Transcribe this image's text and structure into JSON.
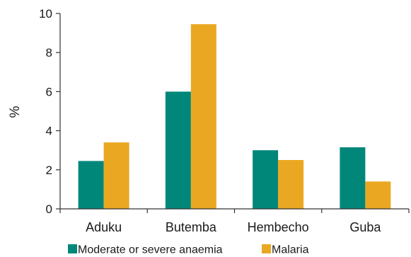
{
  "chart_data": {
    "type": "bar",
    "categories": [
      "Aduku",
      "Butemba",
      "Hembecho",
      "Guba"
    ],
    "series": [
      {
        "name": "Moderate or severe anaemia",
        "color": "#00877A",
        "values": [
          2.45,
          6.0,
          3.0,
          3.15
        ]
      },
      {
        "name": "Malaria",
        "color": "#EAA822",
        "values": [
          3.4,
          9.45,
          2.5,
          1.4
        ]
      }
    ],
    "ylabel": "%",
    "ylim": [
      0,
      10
    ],
    "yticks": [
      0,
      2,
      4,
      6,
      8,
      10
    ],
    "grid": false,
    "legend": "bottom"
  }
}
